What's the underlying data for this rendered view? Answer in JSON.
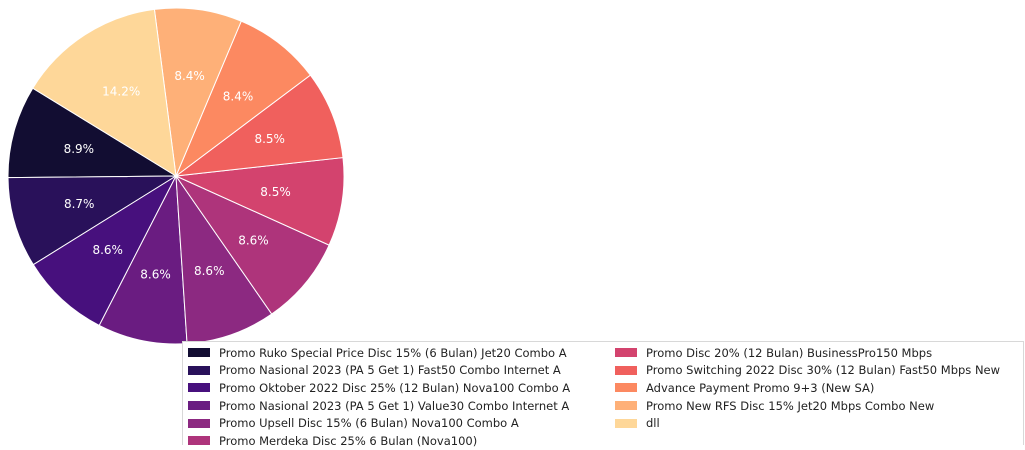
{
  "chart_data": {
    "type": "pie",
    "title": "",
    "slices": [
      {
        "label": "Promo Ruko Special Price Disc 15% (6 Bulan) Jet20 Combo A",
        "value": 8.9,
        "display": "8.9%",
        "color": "#120d32"
      },
      {
        "label": "Promo Nasional 2023 (PA 5 Get 1) Fast50 Combo Internet A",
        "value": 8.7,
        "display": "8.7%",
        "color": "#29115a"
      },
      {
        "label": "Promo Oktober 2022 Disc 25% (12 Bulan) Nova100 Combo A",
        "value": 8.6,
        "display": "8.6%",
        "color": "#47107d"
      },
      {
        "label": "Promo Nasional 2023 (PA 5 Get 1) Value30 Combo Internet A",
        "value": 8.6,
        "display": "8.6%",
        "color": "#6a1c81"
      },
      {
        "label": "Promo Upsell Disc 15% (6 Bulan) Nova100 Combo A",
        "value": 8.6,
        "display": "8.6%",
        "color": "#8c2981"
      },
      {
        "label": "Promo Merdeka Disc 25% 6 Bulan (Nova100)",
        "value": 8.6,
        "display": "8.6%",
        "color": "#ae347b"
      },
      {
        "label": "Promo Disc 20% (12 Bulan) BusinessPro150 Mbps",
        "value": 8.5,
        "display": "8.5%",
        "color": "#d3436e"
      },
      {
        "label": "Promo Switching 2022 Disc 30% (12 Bulan) Fast50 Mbps New",
        "value": 8.5,
        "display": "8.5%",
        "color": "#f0605d"
      },
      {
        "label": "Advance Payment Promo 9+3 (New SA)",
        "value": 8.4,
        "display": "8.4%",
        "color": "#fc8961"
      },
      {
        "label": "Promo New RFS Disc 15% Jet20 Mbps Combo New",
        "value": 8.4,
        "display": "8.4%",
        "color": "#feb078"
      },
      {
        "label": "dll",
        "value": 14.2,
        "display": "14.2%",
        "color": "#fed799"
      }
    ],
    "legend_placement": "bottom-right, two columns"
  }
}
